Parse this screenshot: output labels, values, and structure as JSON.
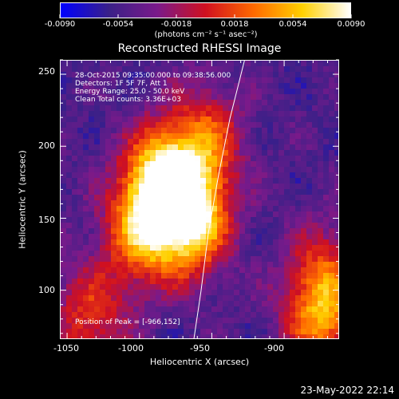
{
  "colorbar": {
    "ticks": [
      "-0.0090",
      "-0.0054",
      "-0.0018",
      "0.0018",
      "0.0054",
      "0.0090"
    ],
    "units": "(photons cm⁻² s⁻¹ asec⁻²)",
    "colors": [
      "#0000ff",
      "#3a2088",
      "#7a1a8a",
      "#d01020",
      "#ff6a00",
      "#ffd000",
      "#ffffff"
    ]
  },
  "title": "Reconstructed RHESSI Image",
  "annotations": {
    "line1": "28-Oct-2015 09:35:00.000 to 09:38:56.000",
    "line2": "Detectors: 1F 5F 7F, Att 1",
    "line3": "Energy Range: 25.0 - 50.0 keV",
    "line4": "Clean     Total counts: 3.36E+03",
    "peak": "Position of Peak = [-966,152]"
  },
  "footer_time": "23-May-2022 22:14",
  "chart_data": {
    "type": "heatmap",
    "title": "Reconstructed RHESSI Image",
    "xlabel": "Heliocentric X (arcsec)",
    "ylabel": "Heliocentric Y (arcsec)",
    "xlim": [
      -1055,
      -862
    ],
    "ylim": [
      66,
      260
    ],
    "x_ticks": [
      "-1050",
      "-1000",
      "-950",
      "-900"
    ],
    "y_ticks": [
      "100",
      "150",
      "200",
      "250"
    ],
    "colorbar_range": [
      -0.009,
      0.009
    ],
    "peak_position": [
      -966,
      152
    ],
    "limb_curve": [
      [
        -963,
        66
      ],
      [
        -958,
        100
      ],
      [
        -953,
        140
      ],
      [
        -946,
        180
      ],
      [
        -938,
        220
      ],
      [
        -928,
        260
      ]
    ],
    "sources": [
      {
        "x": -985,
        "y": 175,
        "intensity": 1.0
      },
      {
        "x": -965,
        "y": 150,
        "intensity": 0.95
      },
      {
        "x": -1000,
        "y": 140,
        "intensity": 0.6
      },
      {
        "x": -955,
        "y": 205,
        "intensity": 0.5
      },
      {
        "x": -1035,
        "y": 80,
        "intensity": 0.45
      },
      {
        "x": -875,
        "y": 80,
        "intensity": 0.55
      },
      {
        "x": -872,
        "y": 110,
        "intensity": 0.4
      }
    ]
  }
}
